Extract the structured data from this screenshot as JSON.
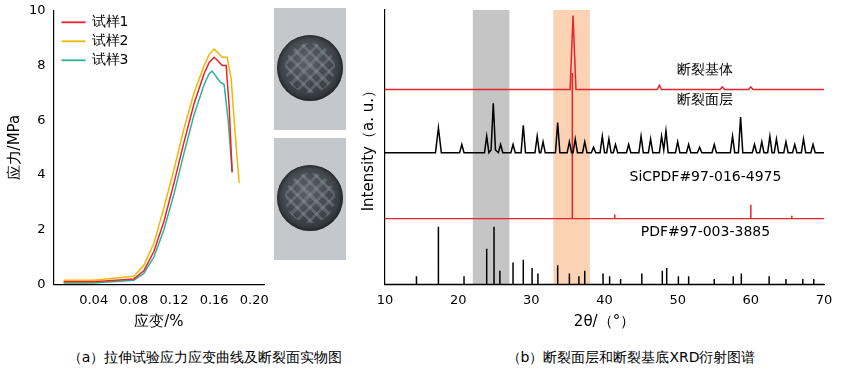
{
  "chart_data": [
    {
      "type": "line",
      "caption": "（a）拉伸试验应力应变曲线及断裂面实物图",
      "x_label": "应变/%",
      "y_label": "应力/MPa",
      "xlim": [
        0,
        0.21
      ],
      "xticks": [
        0.04,
        0.08,
        0.12,
        0.16,
        {
          "value": 0.2,
          "label": "0.20"
        }
      ],
      "ylim": [
        0,
        10
      ],
      "yticks": [
        0,
        2,
        4,
        6,
        8,
        10
      ],
      "grid": false,
      "legend": "upper left",
      "series": [
        {
          "name": "试样1",
          "color": "#e8232b",
          "x": [
            0.01,
            0.04,
            0.08,
            0.09,
            0.1,
            0.11,
            0.12,
            0.13,
            0.14,
            0.15,
            0.155,
            0.16,
            0.163,
            0.168,
            0.172,
            0.175,
            0.178
          ],
          "values": [
            0.1,
            0.1,
            0.2,
            0.5,
            1.2,
            2.3,
            3.7,
            5.2,
            6.6,
            7.7,
            8.1,
            8.3,
            8.2,
            8.0,
            8.0,
            6.5,
            4.1
          ]
        },
        {
          "name": "试样2",
          "color": "#f2b705",
          "x": [
            0.01,
            0.04,
            0.08,
            0.09,
            0.1,
            0.11,
            0.12,
            0.13,
            0.14,
            0.15,
            0.155,
            0.16,
            0.163,
            0.168,
            0.173,
            0.177,
            0.181,
            0.185
          ],
          "values": [
            0.15,
            0.15,
            0.3,
            0.7,
            1.5,
            2.8,
            4.2,
            5.7,
            7.0,
            8.0,
            8.4,
            8.6,
            8.5,
            8.3,
            8.3,
            7.5,
            5.5,
            3.7
          ]
        },
        {
          "name": "试样3",
          "color": "#2bb39b",
          "x": [
            0.01,
            0.04,
            0.08,
            0.09,
            0.1,
            0.11,
            0.12,
            0.13,
            0.14,
            0.15,
            0.155,
            0.158,
            0.162,
            0.166,
            0.17,
            0.174,
            0.178
          ],
          "values": [
            0.05,
            0.05,
            0.15,
            0.4,
            1.0,
            2.0,
            3.3,
            4.8,
            6.2,
            7.3,
            7.7,
            7.8,
            7.6,
            7.4,
            7.3,
            6.0,
            4.1
          ]
        }
      ]
    },
    {
      "type": "line",
      "caption": "（b）断裂面层和断裂基底XRD衍射图谱",
      "x_label": "2θ/（°）",
      "y_label": "Intensity（a. u.）",
      "xlim": [
        10,
        70
      ],
      "xticks": [
        10,
        20,
        30,
        40,
        50,
        60,
        70
      ],
      "ylim": [
        0,
        100
      ],
      "tick_labels": "x",
      "grid": false,
      "bands": [
        {
          "from": 22,
          "to": 27,
          "color": "#8c8c8c"
        },
        {
          "from": 33,
          "to": 38,
          "color": "#f7a86a"
        }
      ],
      "series": [
        {
          "name": "断裂基体",
          "type": "line",
          "color": "#e8232b",
          "x": [
            10,
            35.3,
            35.7,
            36.1,
            47.2,
            47.5,
            47.8,
            55.8,
            56.1,
            56.4,
            59.7,
            60.0,
            60.3,
            70
          ],
          "values": [
            71,
            71,
            98,
            71,
            71,
            72.5,
            71,
            71,
            72,
            71,
            71,
            72,
            71,
            71
          ]
        },
        {
          "name": "断裂面层",
          "type": "line",
          "color": "#000000",
          "x": [
            10,
            16.9,
            17.3,
            17.7,
            20.2,
            20.5,
            20.8,
            23.6,
            23.9,
            24.2,
            24.5,
            24.8,
            25.1,
            25.5,
            25.8,
            26.1,
            27.2,
            27.5,
            27.8,
            28.6,
            28.9,
            29.2,
            30.5,
            30.8,
            31.1,
            31.3,
            31.6,
            31.9,
            33.3,
            33.6,
            33.9,
            34.9,
            35.2,
            35.5,
            35.7,
            36.0,
            36.3,
            37.0,
            37.3,
            37.6,
            38.2,
            38.5,
            38.8,
            39.4,
            39.7,
            40.0,
            40.3,
            40.6,
            40.9,
            41.2,
            41.5,
            41.8,
            43.0,
            43.3,
            43.6,
            44.7,
            45.0,
            45.3,
            46.0,
            46.3,
            46.6,
            47.5,
            47.8,
            48.1,
            48.4,
            48.7,
            49.7,
            50.0,
            50.3,
            51.2,
            51.5,
            51.8,
            52.7,
            53.0,
            53.3,
            54.7,
            55.0,
            55.3,
            57.2,
            57.5,
            57.8,
            58.3,
            58.6,
            58.9,
            60.2,
            60.5,
            60.8,
            61.2,
            61.5,
            61.8,
            62.3,
            62.6,
            62.9,
            63.2,
            63.5,
            63.8,
            64.5,
            64.8,
            65.1,
            65.7,
            66.0,
            66.3,
            66.9,
            67.2,
            67.5,
            68.2,
            68.5,
            68.8,
            70
          ],
          "values": [
            48,
            48,
            57,
            48,
            48,
            51,
            48,
            48,
            54,
            48,
            49,
            66,
            49,
            48,
            51,
            48,
            48,
            51,
            48,
            48,
            58,
            48,
            48,
            54,
            48,
            48,
            52,
            48,
            48,
            59,
            48,
            48,
            52,
            48,
            48,
            53,
            48,
            48,
            52,
            48,
            48,
            50,
            48,
            48,
            54,
            48,
            48,
            53,
            48,
            48,
            51,
            48,
            48,
            51,
            48,
            48,
            54,
            48,
            48,
            53,
            48,
            48,
            54,
            49,
            56,
            48,
            48,
            52,
            48,
            48,
            51,
            48,
            48,
            50,
            48,
            48,
            51,
            48,
            48,
            54,
            48,
            48,
            61,
            48,
            48,
            51,
            48,
            48,
            52,
            48,
            48,
            54,
            48,
            48,
            53,
            48,
            48,
            52,
            48,
            48,
            51,
            48,
            48,
            53,
            48,
            48,
            51,
            48,
            48
          ]
        },
        {
          "name": "SiCPDF#97-016-4975",
          "type": "stick",
          "color": "#e8232b",
          "baseline": 24,
          "x": [
            35.6,
            41.4,
            60.0,
            65.6
          ],
          "values": [
            77,
            25.5,
            29,
            25
          ]
        },
        {
          "name": "PDF#97-003-3885",
          "type": "stick",
          "color": "#000000",
          "baseline": 0,
          "x": [
            14.3,
            17.3,
            20.8,
            23.9,
            24.9,
            25.7,
            27.5,
            28.9,
            30.1,
            30.9,
            33.6,
            35.2,
            36.5,
            37.3,
            39.8,
            40.7,
            42.2,
            45.1,
            47.9,
            48.5,
            50.1,
            51.5,
            55.0,
            57.6,
            58.7,
            62.5,
            64.8,
            67.1,
            68.6
          ],
          "values": [
            3,
            21,
            3,
            13,
            21,
            5,
            8,
            9,
            6,
            4,
            7,
            4,
            3,
            5,
            4,
            3,
            2,
            4,
            5,
            6,
            3,
            3,
            2,
            3,
            4,
            3,
            2,
            2,
            2
          ]
        }
      ]
    }
  ]
}
